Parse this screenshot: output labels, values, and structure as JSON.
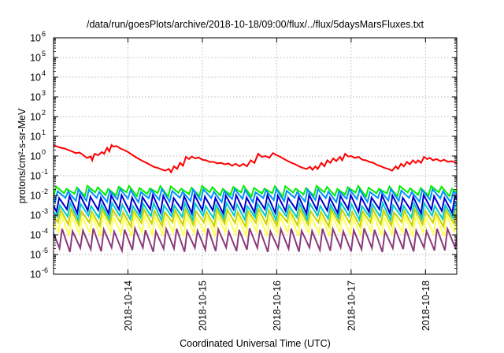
{
  "chart_data": {
    "type": "line",
    "title": "/data/run/goesPlots/archive/2018-10-18/09:00/flux/../flux/5daysMarsFluxes.txt",
    "xlabel": "Coordinated Universal Time (UTC)",
    "ylabel": "protons/cm²-s-sr-MeV",
    "y_scale": "log",
    "ylim": [
      1e-06,
      1000000.0
    ],
    "xlim": [
      13.0,
      18.42
    ],
    "y_ticks": [
      {
        "mant": "10",
        "exp": "-6",
        "v": -6
      },
      {
        "mant": "10",
        "exp": "-5",
        "v": -5
      },
      {
        "mant": "10",
        "exp": "-4",
        "v": -4
      },
      {
        "mant": "10",
        "exp": "-3",
        "v": -3
      },
      {
        "mant": "10",
        "exp": "-2",
        "v": -2
      },
      {
        "mant": "10",
        "exp": "-1",
        "v": -1
      },
      {
        "mant": "10",
        "exp": "0",
        "v": 0
      },
      {
        "mant": "10",
        "exp": "1",
        "v": 1
      },
      {
        "mant": "10",
        "exp": "2",
        "v": 2
      },
      {
        "mant": "10",
        "exp": "3",
        "v": 3
      },
      {
        "mant": "10",
        "exp": "4",
        "v": 4
      },
      {
        "mant": "10",
        "exp": "5",
        "v": 5
      },
      {
        "mant": "10",
        "exp": "6",
        "v": 6
      }
    ],
    "x_ticks": [
      {
        "label": "2018-10-14",
        "day": 14
      },
      {
        "label": "2018-10-15",
        "day": 15
      },
      {
        "label": "2018-10-16",
        "day": 16
      },
      {
        "label": "2018-10-17",
        "day": 17
      },
      {
        "label": "2018-10-18",
        "day": 18
      }
    ],
    "grid": true,
    "series": [
      {
        "color": "#ff0000",
        "values": [
          [
            13.0,
            3.5
          ],
          [
            13.05,
            3.0
          ],
          [
            13.1,
            2.6
          ],
          [
            13.15,
            2.4
          ],
          [
            13.2,
            2.0
          ],
          [
            13.25,
            1.7
          ],
          [
            13.3,
            1.4
          ],
          [
            13.35,
            1.5
          ],
          [
            13.4,
            1.1
          ],
          [
            13.45,
            0.8
          ],
          [
            13.5,
            0.95
          ],
          [
            13.52,
            0.6
          ],
          [
            13.55,
            1.3
          ],
          [
            13.6,
            1.1
          ],
          [
            13.65,
            1.6
          ],
          [
            13.68,
            1.3
          ],
          [
            13.72,
            2.6
          ],
          [
            13.75,
            1.7
          ],
          [
            13.78,
            3.6
          ],
          [
            13.8,
            3.0
          ],
          [
            13.85,
            3.2
          ],
          [
            13.9,
            2.4
          ],
          [
            13.95,
            2.0
          ],
          [
            14.0,
            1.6
          ],
          [
            14.05,
            1.2
          ],
          [
            14.1,
            0.9
          ],
          [
            14.15,
            0.7
          ],
          [
            14.2,
            0.55
          ],
          [
            14.25,
            0.45
          ],
          [
            14.3,
            0.35
          ],
          [
            14.35,
            0.28
          ],
          [
            14.4,
            0.25
          ],
          [
            14.45,
            0.21
          ],
          [
            14.5,
            0.18
          ],
          [
            14.55,
            0.22
          ],
          [
            14.58,
            0.15
          ],
          [
            14.62,
            0.3
          ],
          [
            14.66,
            0.22
          ],
          [
            14.7,
            0.45
          ],
          [
            14.74,
            0.32
          ],
          [
            14.78,
            0.9
          ],
          [
            14.82,
            0.7
          ],
          [
            14.86,
            0.95
          ],
          [
            14.9,
            0.75
          ],
          [
            14.95,
            0.85
          ],
          [
            15.0,
            0.65
          ],
          [
            15.05,
            0.6
          ],
          [
            15.1,
            0.5
          ],
          [
            15.15,
            0.5
          ],
          [
            15.2,
            0.42
          ],
          [
            15.25,
            0.45
          ],
          [
            15.3,
            0.38
          ],
          [
            15.35,
            0.42
          ],
          [
            15.4,
            0.32
          ],
          [
            15.45,
            0.4
          ],
          [
            15.5,
            0.3
          ],
          [
            15.55,
            0.4
          ],
          [
            15.6,
            0.3
          ],
          [
            15.65,
            0.6
          ],
          [
            15.7,
            0.45
          ],
          [
            15.75,
            1.3
          ],
          [
            15.8,
            0.9
          ],
          [
            15.85,
            1.0
          ],
          [
            15.9,
            0.8
          ],
          [
            15.95,
            1.4
          ],
          [
            16.0,
            1.1
          ],
          [
            16.05,
            0.9
          ],
          [
            16.1,
            0.7
          ],
          [
            16.15,
            0.55
          ],
          [
            16.2,
            0.45
          ],
          [
            16.25,
            0.38
          ],
          [
            16.3,
            0.3
          ],
          [
            16.35,
            0.25
          ],
          [
            16.4,
            0.22
          ],
          [
            16.45,
            0.28
          ],
          [
            16.48,
            0.2
          ],
          [
            16.52,
            0.3
          ],
          [
            16.55,
            0.22
          ],
          [
            16.6,
            0.45
          ],
          [
            16.64,
            0.3
          ],
          [
            16.68,
            0.6
          ],
          [
            16.72,
            0.45
          ],
          [
            16.76,
            0.75
          ],
          [
            16.8,
            0.55
          ],
          [
            16.85,
            0.9
          ],
          [
            16.88,
            0.6
          ],
          [
            16.92,
            1.3
          ],
          [
            16.96,
            0.95
          ],
          [
            17.0,
            1.0
          ],
          [
            17.05,
            0.8
          ],
          [
            17.1,
            0.9
          ],
          [
            17.15,
            0.65
          ],
          [
            17.2,
            0.6
          ],
          [
            17.25,
            0.5
          ],
          [
            17.3,
            0.45
          ],
          [
            17.35,
            0.35
          ],
          [
            17.4,
            0.3
          ],
          [
            17.45,
            0.25
          ],
          [
            17.5,
            0.22
          ],
          [
            17.55,
            0.18
          ],
          [
            17.6,
            0.3
          ],
          [
            17.63,
            0.22
          ],
          [
            17.67,
            0.4
          ],
          [
            17.71,
            0.3
          ],
          [
            17.75,
            0.5
          ],
          [
            17.79,
            0.38
          ],
          [
            17.83,
            0.6
          ],
          [
            17.87,
            0.45
          ],
          [
            17.9,
            0.6
          ],
          [
            17.94,
            0.45
          ],
          [
            17.98,
            0.9
          ],
          [
            18.02,
            0.7
          ],
          [
            18.06,
            0.8
          ],
          [
            18.1,
            0.6
          ],
          [
            18.15,
            0.7
          ],
          [
            18.2,
            0.55
          ],
          [
            18.25,
            0.65
          ],
          [
            18.3,
            0.5
          ],
          [
            18.35,
            0.55
          ],
          [
            18.42,
            0.45
          ]
        ]
      },
      {
        "color": "#00ee00",
        "sawtooth": {
          "top": 0.026,
          "bottom": 0.0115,
          "period": 0.14,
          "phase": 0.0,
          "rise": 0.25,
          "drift": 1.1
        }
      },
      {
        "color": "#0090ff",
        "sawtooth": {
          "top": 0.018,
          "bottom": 0.006,
          "period": 0.14,
          "phase": 0.02,
          "rise": 0.25,
          "drift": 1.0
        }
      },
      {
        "color": "#0000cc",
        "sawtooth": {
          "top": 0.009,
          "bottom": 0.0016,
          "period": 0.14,
          "phase": 0.04,
          "rise": 0.25,
          "drift": 1.0
        }
      },
      {
        "color": "#00cccc",
        "sawtooth": {
          "top": 0.0035,
          "bottom": 0.00075,
          "period": 0.14,
          "phase": 0.05,
          "rise": 0.25,
          "drift": 1.0
        }
      },
      {
        "color": "#c8d200",
        "sawtooth": {
          "top": 0.0017,
          "bottom": 0.00035,
          "period": 0.14,
          "phase": 0.06,
          "rise": 0.25,
          "drift": 1.0
        }
      },
      {
        "color": "#ffff55",
        "sawtooth": {
          "top": 0.0009,
          "bottom": 0.00011,
          "period": 0.14,
          "phase": 0.07,
          "rise": 0.25,
          "drift": 1.0
        }
      },
      {
        "color": "#8b3a7a",
        "sawtooth": {
          "top": 0.00018,
          "bottom": 1.8e-05,
          "period": 0.14,
          "phase": 0.08,
          "rise": 0.25,
          "drift": 1.0
        }
      }
    ]
  }
}
